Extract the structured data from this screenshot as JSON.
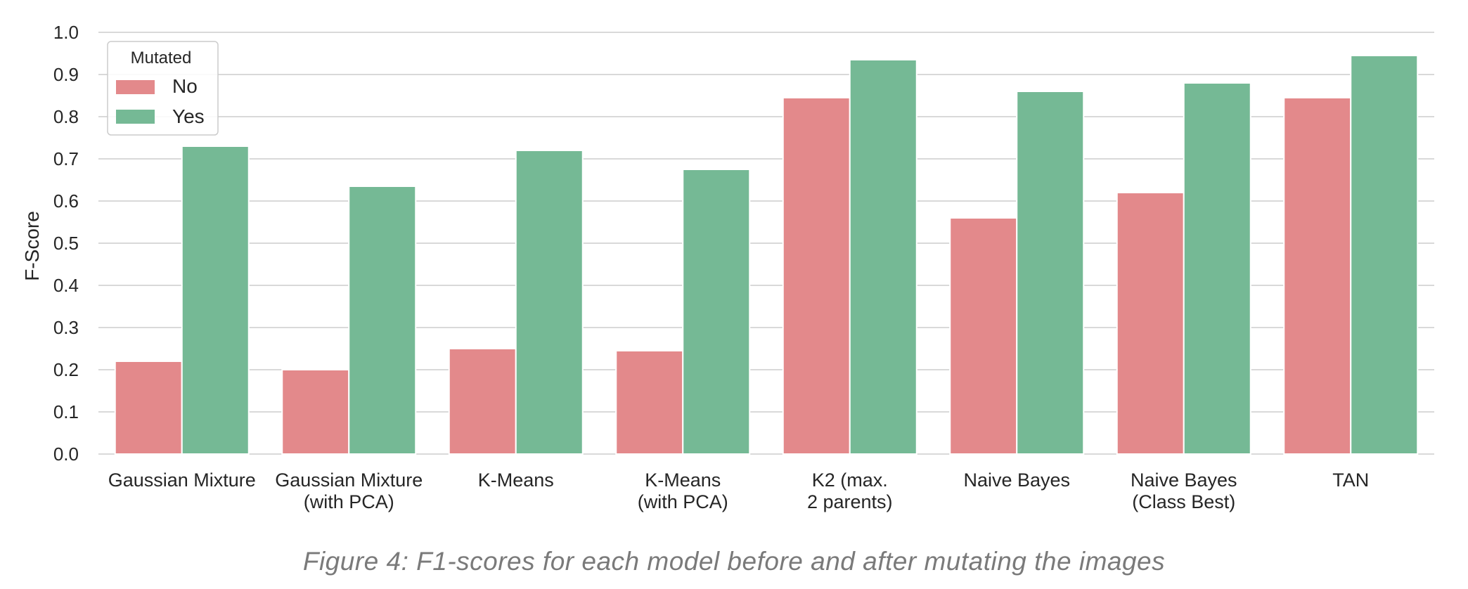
{
  "chart_data": {
    "type": "bar",
    "title": "",
    "xlabel": "",
    "ylabel": "F-Score",
    "ylim": [
      0,
      1.0
    ],
    "yticks": [
      "0.0",
      "0.1",
      "0.2",
      "0.3",
      "0.4",
      "0.5",
      "0.6",
      "0.7",
      "0.8",
      "0.9",
      "1.0"
    ],
    "grid": "horizontal",
    "legend": {
      "title": "Mutated",
      "placement": "top-left"
    },
    "categories": [
      [
        "Gaussian Mixture"
      ],
      [
        "Gaussian Mixture",
        "(with PCA)"
      ],
      [
        "K-Means"
      ],
      [
        "K-Means",
        "(with PCA)"
      ],
      [
        "K2 (max.",
        "2 parents)"
      ],
      [
        "Naive Bayes"
      ],
      [
        "Naive Bayes",
        "(Class Best)"
      ],
      [
        "TAN"
      ]
    ],
    "series": [
      {
        "name": "No",
        "color": "#e3898b",
        "values": [
          0.22,
          0.2,
          0.25,
          0.245,
          0.845,
          0.56,
          0.62,
          0.845
        ]
      },
      {
        "name": "Yes",
        "color": "#75b995",
        "values": [
          0.73,
          0.635,
          0.72,
          0.675,
          0.935,
          0.86,
          0.88,
          0.945
        ]
      }
    ]
  },
  "caption": "Figure 4: F1-scores for each model before and after mutating the images"
}
